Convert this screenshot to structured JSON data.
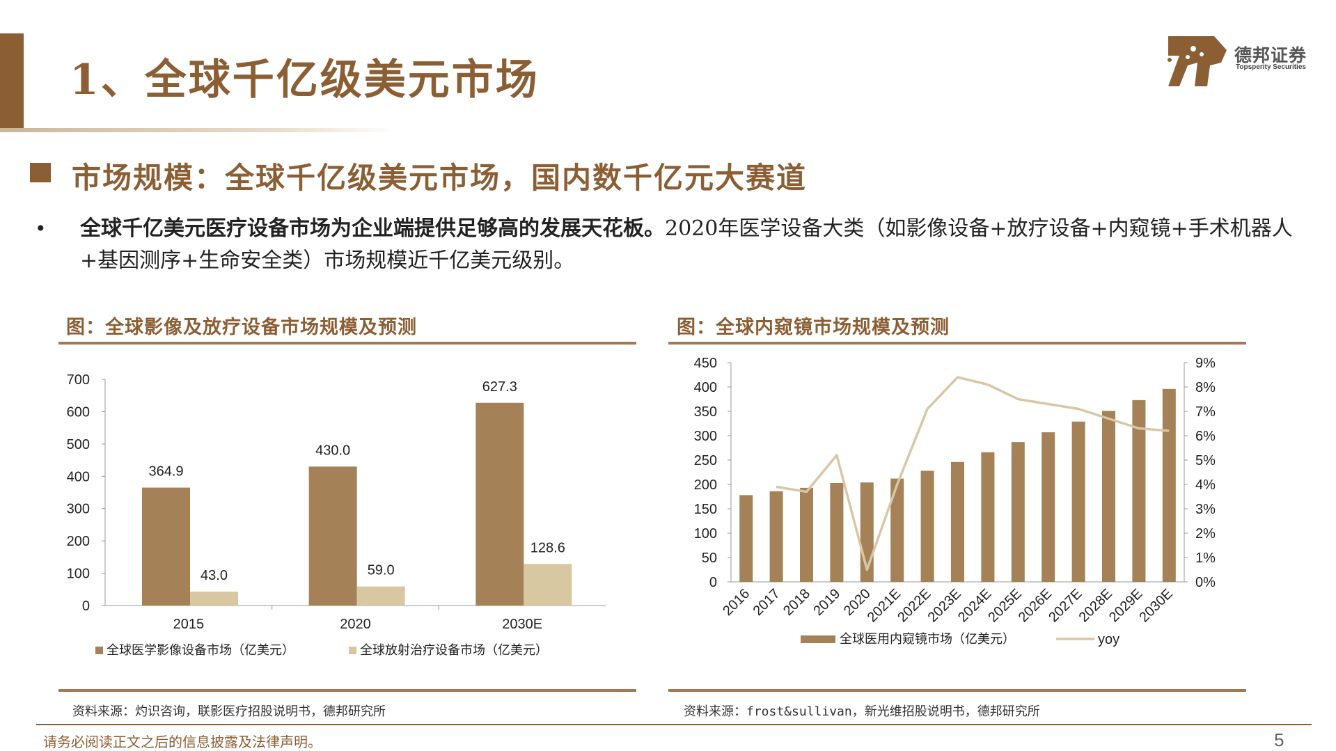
{
  "page": {
    "title": "1、全球千亿级美元市场",
    "brand_cn": "德邦证券",
    "brand_en": "Topsperity Securities",
    "section_title": "市场规模：全球千亿级美元市场，国内数千亿元大赛道",
    "bullet": "•",
    "body_bold": "全球千亿美元医疗设备市场为企业端提供足够高的发展天花板。",
    "body_rest": "2020年医学设备大类（如影像设备+放疗设备+内窥镜+手术机器人+基因测序+生命安全类）市场规模近千亿美元级别。",
    "disclaimer": "请务必阅读正文之后的信息披露及法律声明。",
    "page_number": "5",
    "colors": {
      "brand": "#8b5e34",
      "bar_dark": "#a48157",
      "bar_light": "#d7c8a2",
      "line": "#d9c7a4"
    }
  },
  "figure_left": {
    "title": "图：全球影像及放疗设备市场规模及预测",
    "source": "资料来源：灼识咨询，联影医疗招股说明书，德邦研究所"
  },
  "figure_right": {
    "title": "图：全球内窥镜市场规模及预测",
    "source": "资料来源：frost&sullivan，新光维招股说明书，德邦研究所"
  },
  "chart_data": [
    {
      "type": "bar",
      "categories": [
        "2015",
        "2020",
        "2030E"
      ],
      "series": [
        {
          "name": "全球医学影像设备市场（亿美元）",
          "values": [
            364.9,
            430.0,
            627.3
          ],
          "labels": [
            "364.9",
            "430.0",
            "627.3"
          ]
        },
        {
          "name": "全球放射治疗设备市场（亿美元）",
          "values": [
            43.0,
            59.0,
            128.6
          ],
          "labels": [
            "43.0",
            "59.0",
            "128.6"
          ]
        }
      ],
      "ylim": [
        0,
        700
      ],
      "yticks": [
        "0",
        "100",
        "200",
        "300",
        "400",
        "500",
        "600",
        "700"
      ],
      "legend_position": "bottom"
    },
    {
      "type": "bar",
      "categories": [
        "2016",
        "2017",
        "2018",
        "2019",
        "2020",
        "2021E",
        "2022E",
        "2023E",
        "2024E",
        "2025E",
        "2026E",
        "2027E",
        "2028E",
        "2029E",
        "2030E"
      ],
      "series": [
        {
          "name": "全球医用内窥镜市场（亿美元）",
          "type": "bar",
          "axis": "left",
          "values": [
            178,
            186,
            193,
            203,
            204,
            212,
            228,
            246,
            266,
            287,
            307,
            329,
            351,
            373,
            396
          ]
        },
        {
          "name": "yoy",
          "type": "line",
          "axis": "right",
          "values": [
            null,
            3.9,
            3.7,
            5.2,
            0.5,
            4.0,
            7.1,
            8.4,
            8.1,
            7.5,
            7.3,
            7.1,
            6.7,
            6.3,
            6.2
          ]
        }
      ],
      "ylim": [
        0,
        450
      ],
      "yticks": [
        "0",
        "50",
        "100",
        "150",
        "200",
        "250",
        "300",
        "350",
        "400",
        "450"
      ],
      "y2lim": [
        0,
        9
      ],
      "y2ticks": [
        "0%",
        "1%",
        "2%",
        "3%",
        "4%",
        "5%",
        "6%",
        "7%",
        "8%",
        "9%"
      ],
      "legend_position": "bottom"
    }
  ]
}
